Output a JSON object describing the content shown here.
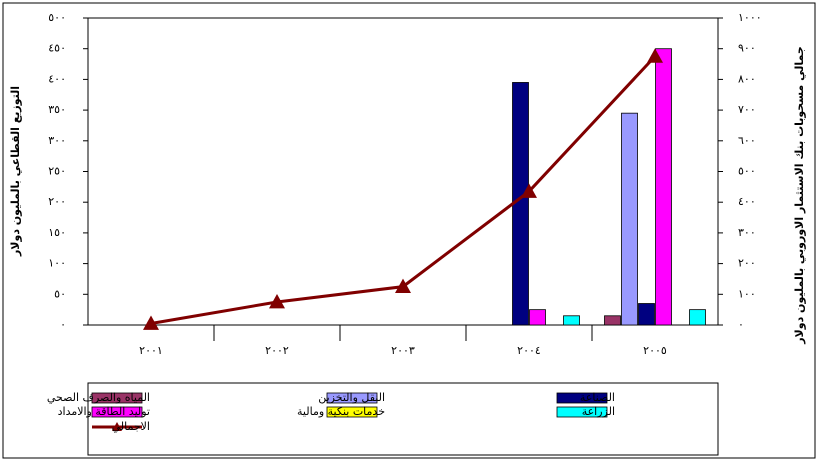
{
  "chart_data": {
    "type": "bar",
    "categories": [
      "٢٠٠١",
      "٢٠٠٢",
      "٢٠٠٣",
      "٢٠٠٤",
      "٢٠٠٥"
    ],
    "y_label": "التوزيع القطاعي بالمليون دولار",
    "y2_label": "جمالي مسحوبات بنك الاستثمار الاوروبي بالمليون دولار",
    "ylim": [
      0,
      500
    ],
    "yticks": [
      {
        "value": 0,
        "label": "٠"
      },
      {
        "value": 50,
        "label": "٥٠"
      },
      {
        "value": 100,
        "label": "١٠٠"
      },
      {
        "value": 150,
        "label": "١٥٠"
      },
      {
        "value": 200,
        "label": "٢٠٠"
      },
      {
        "value": 250,
        "label": "٢٥٠"
      },
      {
        "value": 300,
        "label": "٣٠٠"
      },
      {
        "value": 350,
        "label": "٣٥٠"
      },
      {
        "value": 400,
        "label": "٤٠٠"
      },
      {
        "value": 450,
        "label": "٤٥٠"
      },
      {
        "value": 500,
        "label": "٥٠٠"
      }
    ],
    "y2lim": [
      0,
      1000
    ],
    "y2ticks": [
      {
        "value": 0,
        "label": "٠"
      },
      {
        "value": 100,
        "label": "١٠٠"
      },
      {
        "value": 200,
        "label": "٢٠٠"
      },
      {
        "value": 300,
        "label": "٣٠٠"
      },
      {
        "value": 400,
        "label": "٤٠٠"
      },
      {
        "value": 500,
        "label": "٥٠٠"
      },
      {
        "value": 600,
        "label": "٦٠٠"
      },
      {
        "value": 700,
        "label": "٧٠٠"
      },
      {
        "value": 800,
        "label": "٨٠٠"
      },
      {
        "value": 900,
        "label": "٩٠٠"
      },
      {
        "value": 1000,
        "label": "١٠٠٠"
      }
    ],
    "series": [
      {
        "name": "المياه والصرف الصحي",
        "color": "#993366",
        "values": [
          null,
          null,
          null,
          null,
          15
        ]
      },
      {
        "name": "النقل والتخزين",
        "color": "#9999ff",
        "values": [
          null,
          null,
          null,
          null,
          345
        ]
      },
      {
        "name": "الصناعة",
        "color": "#000080",
        "values": [
          null,
          null,
          null,
          395,
          35
        ]
      },
      {
        "name": "توليد الطاقة والامداد",
        "color": "#ff00ff",
        "values": [
          null,
          null,
          null,
          25,
          450
        ]
      },
      {
        "name": "خدمات بنكية ومالية",
        "color": "#ffff00",
        "values": [
          null,
          null,
          null,
          null,
          null
        ]
      },
      {
        "name": "الزراعة",
        "color": "#00ffff",
        "values": [
          null,
          null,
          null,
          15,
          25
        ]
      },
      {
        "name": "الاجمالي",
        "color": "#800000",
        "type": "line",
        "axis": "y2",
        "values": [
          5,
          75,
          125,
          435,
          875
        ]
      }
    ]
  }
}
